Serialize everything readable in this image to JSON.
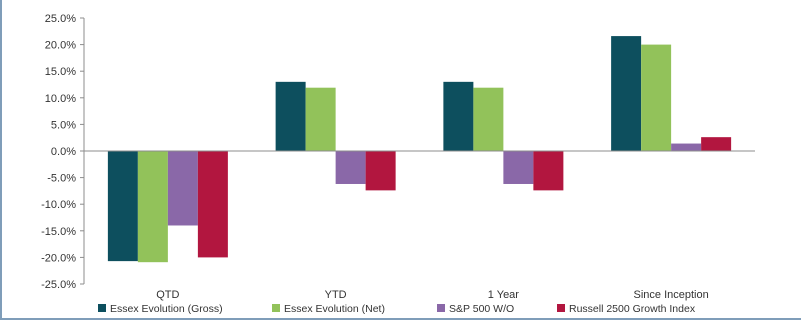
{
  "chart_data": {
    "type": "bar",
    "categories": [
      "QTD",
      "YTD",
      "1 Year",
      "Since Inception"
    ],
    "series": [
      {
        "name": "Essex Evolution (Gross)",
        "color": "#0d4f5e",
        "values": [
          -20.7,
          13.0,
          13.0,
          21.6
        ]
      },
      {
        "name": "Essex Evolution (Net)",
        "color": "#92c25a",
        "values": [
          -20.9,
          11.9,
          11.9,
          20.0
        ]
      },
      {
        "name": "S&P 500 W/O",
        "color": "#8a68a8",
        "values": [
          -14.0,
          -6.2,
          -6.2,
          1.4
        ]
      },
      {
        "name": "Russell 2500 Growth Index",
        "color": "#b2163f",
        "values": [
          -20.0,
          -7.4,
          -7.4,
          2.6
        ]
      }
    ],
    "ylim": [
      -25,
      25
    ],
    "yticks": [
      "25.0%",
      "20.0%",
      "15.0%",
      "10.0%",
      "5.0%",
      "0.0%",
      "-5.0%",
      "-10.0%",
      "-15.0%",
      "-20.0%",
      "-25.0%"
    ],
    "ytick_values": [
      25,
      20,
      15,
      10,
      5,
      0,
      -5,
      -10,
      -15,
      -20,
      -25
    ],
    "grid": false,
    "legend_position": "bottom"
  }
}
